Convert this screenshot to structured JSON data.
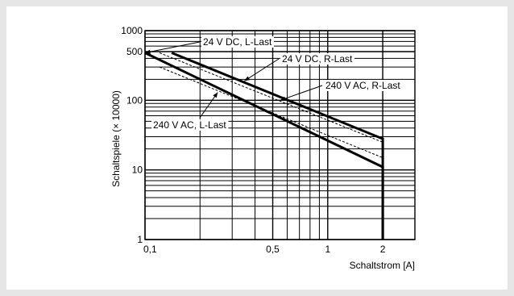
{
  "chart_data": {
    "type": "line",
    "title": "",
    "xlabel": "Schaltstrom [A]",
    "ylabel": "Schaltspiele (× 10000)",
    "x_scale": "log",
    "y_scale": "log",
    "xlim": [
      0.1,
      3
    ],
    "ylim": [
      1,
      1000
    ],
    "grid": true,
    "legend": "none",
    "x_major_ticks": [
      {
        "value": 0.1,
        "label": "0,1"
      },
      {
        "value": 0.5,
        "label": "0,5"
      },
      {
        "value": 1,
        "label": "1"
      },
      {
        "value": 2,
        "label": "2"
      }
    ],
    "y_major_ticks": [
      {
        "value": 1,
        "label": "1"
      },
      {
        "value": 10,
        "label": "10"
      },
      {
        "value": 100,
        "label": "100"
      },
      {
        "value": 500,
        "label": "500"
      },
      {
        "value": 1000,
        "label": "1000"
      }
    ],
    "series": [
      {
        "name": "24 V DC, L-Last",
        "style": "solid-thick",
        "points": [
          [
            0.1,
            480
          ],
          [
            2,
            11
          ],
          [
            2,
            1
          ]
        ]
      },
      {
        "name": "24 V DC, R-Last",
        "style": "solid-thick",
        "points": [
          [
            0.14,
            480
          ],
          [
            2,
            28
          ],
          [
            2,
            1
          ]
        ]
      },
      {
        "name": "240 V AC, R-Last",
        "style": "dashed",
        "points": [
          [
            0.12,
            480
          ],
          [
            2,
            25
          ]
        ]
      },
      {
        "name": "240 V AC, L-Last",
        "style": "dashed",
        "points": [
          [
            0.12,
            300
          ],
          [
            2,
            15
          ]
        ]
      }
    ],
    "annotations": [
      {
        "text": "24 V DC, L-Last",
        "series": "24 V DC, L-Last",
        "target": [
          0.1,
          480
        ]
      },
      {
        "text": "24 V DC, R-Last",
        "series": "24 V DC, R-Last",
        "target": [
          0.35,
          190
        ]
      },
      {
        "text": "240 V AC, R-Last",
        "series": "240 V AC, R-Last",
        "target": [
          0.55,
          100
        ]
      },
      {
        "text": "240 V AC, L-Last",
        "series": "240 V AC, L-Last",
        "target": [
          0.25,
          130
        ]
      }
    ],
    "colors": {
      "line": "#000000",
      "grid": "#000000",
      "background": "#ffffff"
    }
  }
}
